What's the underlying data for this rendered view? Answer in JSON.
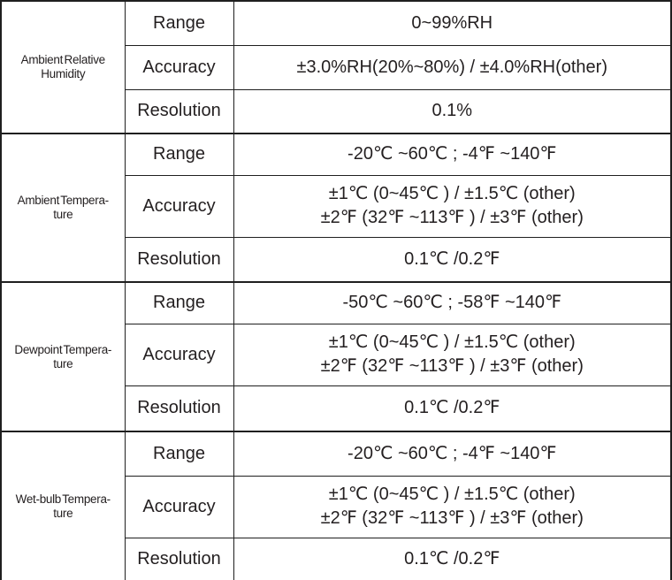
{
  "table": {
    "colors": {
      "border": "#1f1f1f",
      "text": "#231f20",
      "background": "#ffffff"
    },
    "sections": [
      {
        "category_lines": [
          "Ambient Relative",
          "Humidity"
        ],
        "rows": [
          {
            "label": "Range",
            "value": "0~99%RH"
          },
          {
            "label": "Accuracy",
            "value": "±3.0%RH(20%~80%) / ±4.0%RH(other)"
          },
          {
            "label": "Resolution",
            "value": "0.1%"
          }
        ]
      },
      {
        "category_lines": [
          "Ambient Tempera-",
          "ture"
        ],
        "rows": [
          {
            "label": "Range",
            "value": "-20℃ ~60℃ ; -4℉ ~140℉"
          },
          {
            "label": "Accuracy",
            "value_lines": [
              "±1℃ (0~45℃ ) / ±1.5℃ (other)",
              "±2℉ (32℉ ~113℉ ) / ±3℉ (other)"
            ]
          },
          {
            "label": "Resolution",
            "value": "0.1℃ /0.2℉"
          }
        ]
      },
      {
        "category_lines": [
          "Dewpoint Tempera-",
          "ture"
        ],
        "rows": [
          {
            "label": "Range",
            "value": "-50℃ ~60℃ ; -58℉ ~140℉"
          },
          {
            "label": "Accuracy",
            "value_lines": [
              "±1℃ (0~45℃ ) / ±1.5℃ (other)",
              "±2℉ (32℉ ~113℉ ) / ±3℉ (other)"
            ]
          },
          {
            "label": "Resolution",
            "value": "0.1℃ /0.2℉"
          }
        ]
      },
      {
        "category_lines": [
          "Wet-bulb Tempera-",
          "ture"
        ],
        "rows": [
          {
            "label": "Range",
            "value": "-20℃ ~60℃ ; -4℉ ~140℉"
          },
          {
            "label": "Accuracy",
            "value_lines": [
              "±1℃ (0~45℃ ) / ±1.5℃ (other)",
              "±2℉ (32℉ ~113℉ ) / ±3℉ (other)"
            ]
          },
          {
            "label": "Resolution",
            "value": "0.1℃ /0.2℉"
          }
        ]
      }
    ]
  }
}
